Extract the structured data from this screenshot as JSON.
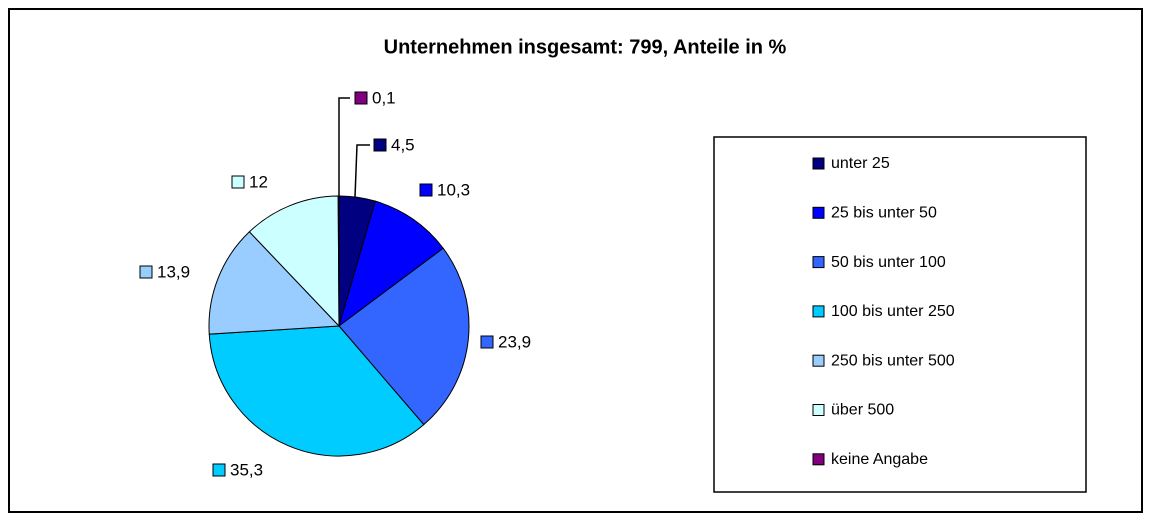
{
  "chart_data": {
    "type": "pie",
    "title": "Unternehmen insgesamt: 799, Anteile in %",
    "categories": [
      "unter 25",
      "25 bis unter 50",
      "50 bis unter 100",
      "100 bis unter 250",
      "250 bis unter 500",
      "über 500",
      "keine Angabe"
    ],
    "values": [
      4.5,
      10.3,
      23.9,
      35.3,
      13.9,
      12,
      0.1
    ],
    "value_labels": [
      "4,5",
      "10,3",
      "23,9",
      "35,3",
      "13,9",
      "12",
      "0,1"
    ],
    "colors": [
      "#000080",
      "#0000ff",
      "#3366ff",
      "#00ccff",
      "#99ccff",
      "#ccffff",
      "#800080"
    ],
    "legend": "right"
  }
}
